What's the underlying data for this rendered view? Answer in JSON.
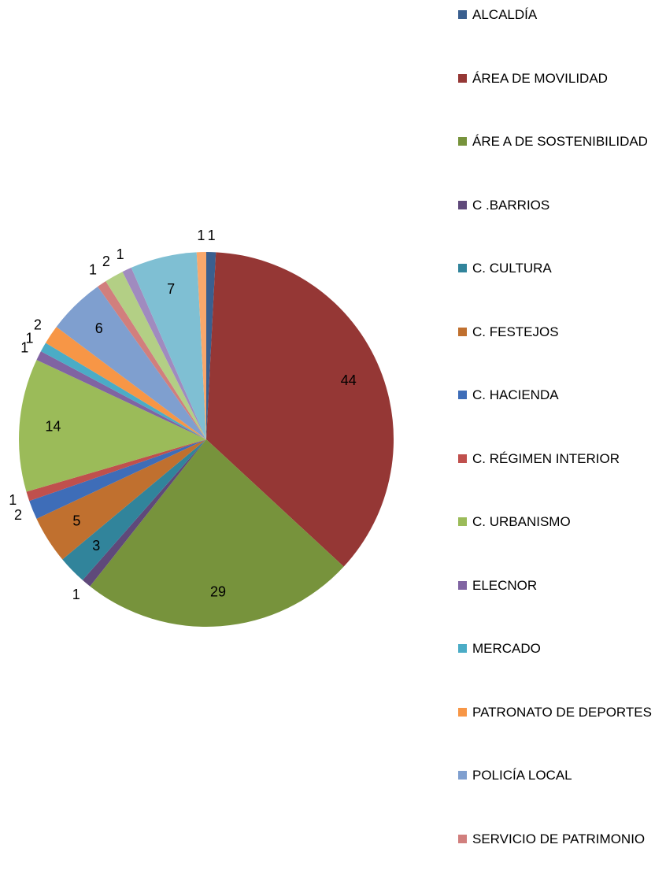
{
  "chart_data": {
    "type": "pie",
    "categories": [
      "ALCALDÍA",
      "ÁREA DE MOVILIDAD",
      "ÁRE A DE SOSTENIBILIDAD",
      "C .BARRIOS",
      "C. CULTURA",
      "C. FESTEJOS",
      "C. HACIENDA",
      "C. RÉGIMEN INTERIOR",
      "C. URBANISMO",
      "ELECNOR",
      "MERCADO",
      "PATRONATO DE DEPORTES",
      "POLICÍA LOCAL",
      "SERVICIO DE PATRIMONIO",
      null,
      null,
      null,
      null
    ],
    "values": [
      1,
      44,
      29,
      1,
      3,
      5,
      2,
      1,
      14,
      1,
      1,
      2,
      6,
      1,
      2,
      1,
      7,
      1
    ],
    "colors": [
      "#3a5f8f",
      "#953735",
      "#77933c",
      "#5f497a",
      "#31849b",
      "#c0702f",
      "#3e6db8",
      "#c0504d",
      "#9bbb59",
      "#8064a2",
      "#4bacc6",
      "#f79646",
      "#7f9fcf",
      "#d17f7d",
      "#b3cf85",
      "#a08bbf",
      "#7fbfd3",
      "#f9a86c"
    ],
    "legend": "right"
  }
}
